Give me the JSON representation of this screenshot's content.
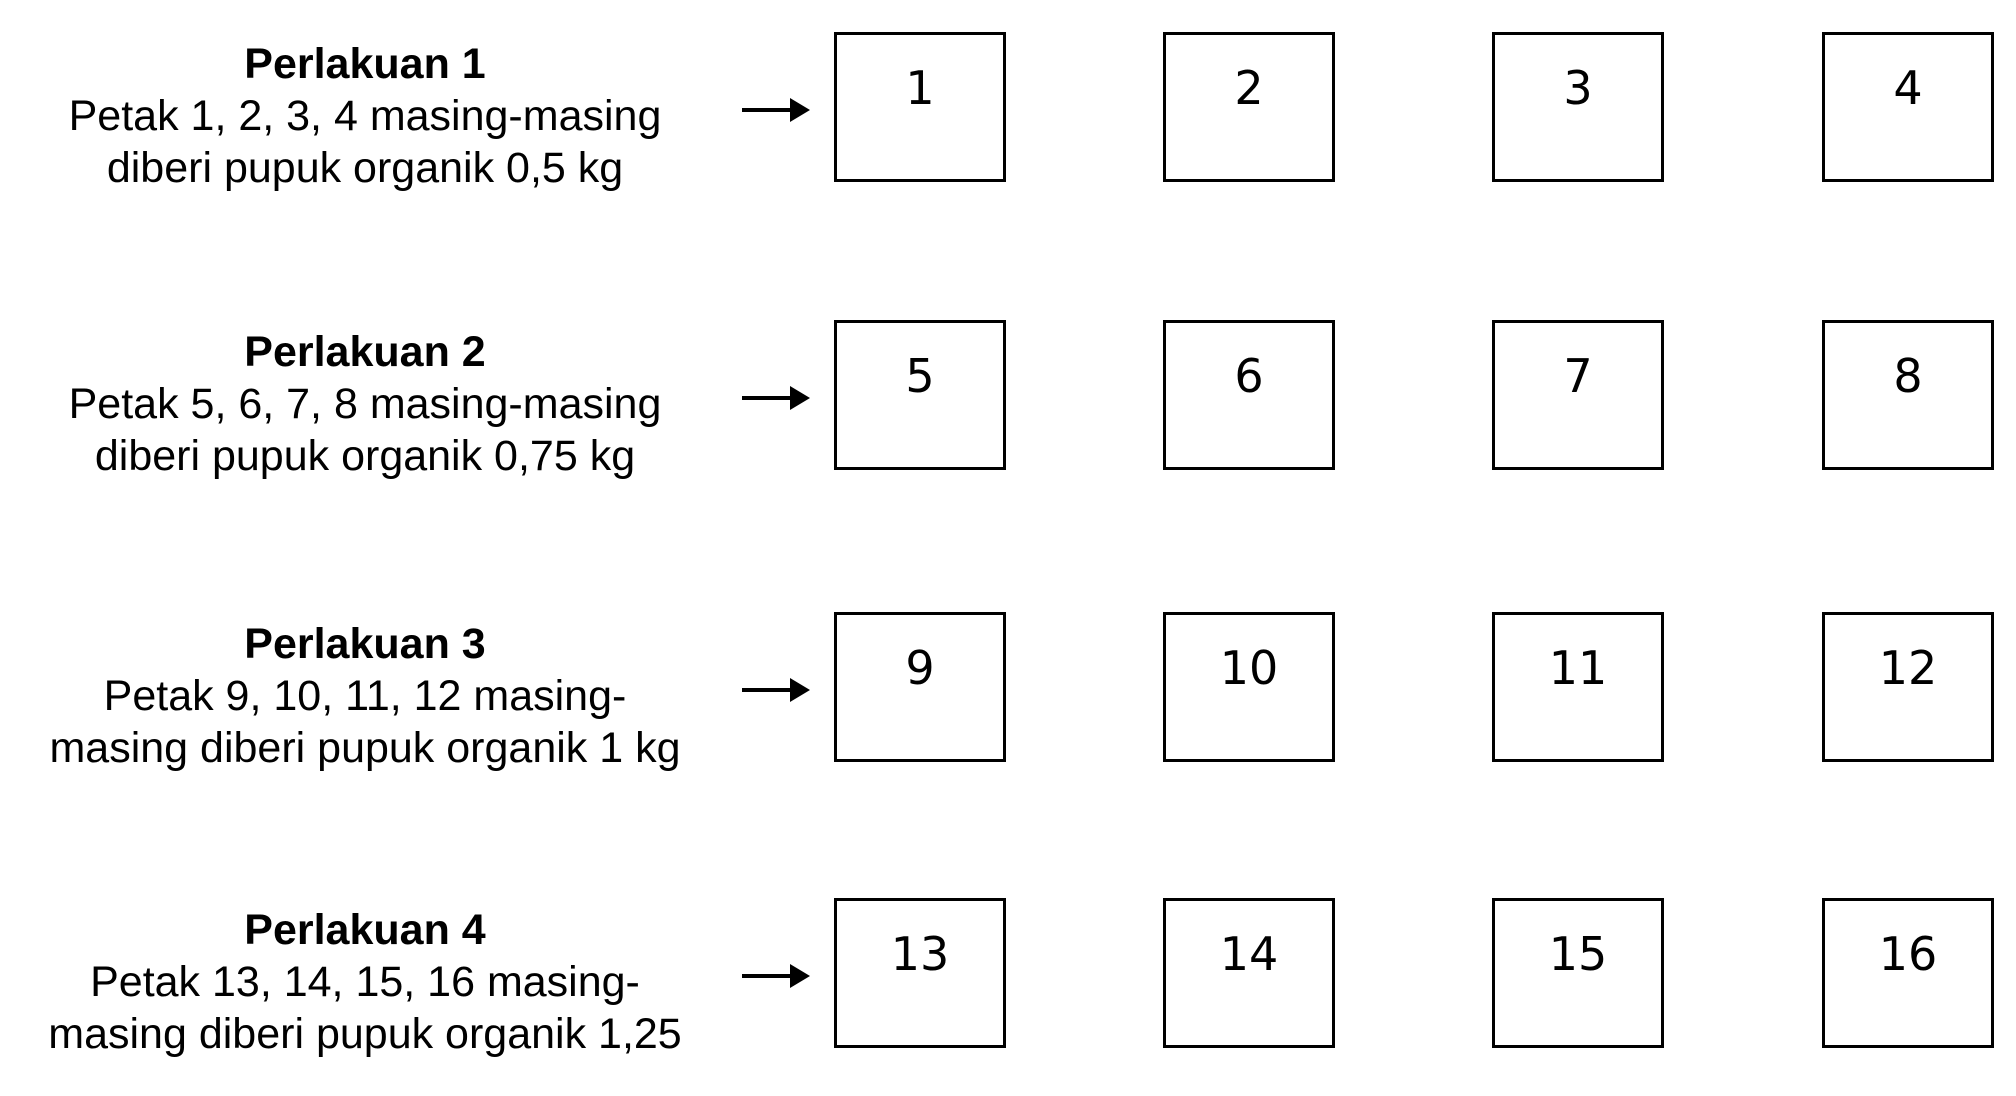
{
  "treatments": [
    {
      "title": "Perlakuan 1",
      "description_lines": [
        "Petak 1, 2, 3, 4 masing-masing",
        "diberi pupuk organik 0,5 kg"
      ],
      "plots": [
        "1",
        "2",
        "3",
        "4"
      ]
    },
    {
      "title": "Perlakuan 2",
      "description_lines": [
        "Petak 5, 6, 7, 8 masing-masing",
        "diberi pupuk organik 0,75 kg"
      ],
      "plots": [
        "5",
        "6",
        "7",
        "8"
      ]
    },
    {
      "title": "Perlakuan 3",
      "description_lines": [
        "Petak 9, 10, 11, 12 masing-",
        "masing diberi pupuk organik 1 kg"
      ],
      "plots": [
        "9",
        "10",
        "11",
        "12"
      ]
    },
    {
      "title": "Perlakuan 4",
      "description_lines": [
        "Petak 13, 14, 15, 16 masing-",
        "masing diberi pupuk organik 1,25"
      ],
      "plots": [
        "13",
        "14",
        "15",
        "16"
      ]
    }
  ],
  "icons": {
    "arrow": "arrow-right-icon"
  },
  "colors": {
    "line": "#000000",
    "background": "#ffffff"
  }
}
